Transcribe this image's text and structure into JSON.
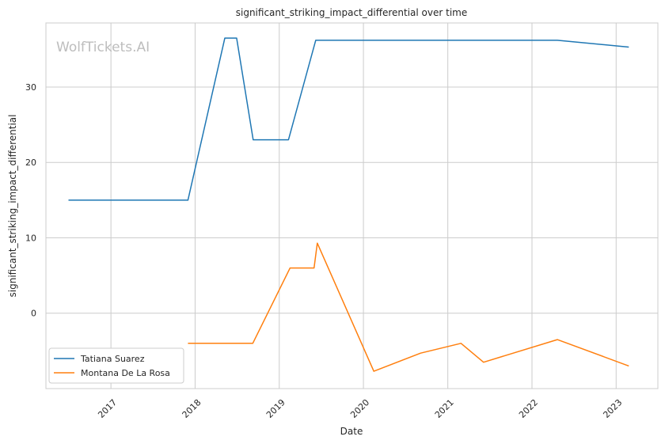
{
  "watermark": "WolfTickets.AI",
  "colors": {
    "series_1": "#1f77b4",
    "series_2": "#ff7f0e",
    "grid": "#cccccc",
    "frame": "#cccccc"
  },
  "chart_data": {
    "type": "line",
    "title": "significant_striking_impact_differential over time",
    "xlabel": "Date",
    "ylabel": "significant_striking_impact_differential",
    "x_ticks": [
      "2017",
      "2018",
      "2019",
      "2020",
      "2021",
      "2022",
      "2023"
    ],
    "y_ticks": [
      0,
      10,
      20,
      30
    ],
    "xlim": [
      "2016-03-25",
      "2023-07-01"
    ],
    "ylim": [
      -10,
      38.5
    ],
    "grid": true,
    "legend_position": "lower-left",
    "series": [
      {
        "name": "Tatiana Suarez",
        "points": [
          [
            "2016-07-01",
            15
          ],
          [
            "2017-12-01",
            15
          ],
          [
            "2018-05-10",
            36.5
          ],
          [
            "2018-06-30",
            36.5
          ],
          [
            "2018-09-10",
            23
          ],
          [
            "2019-02-10",
            23
          ],
          [
            "2019-06-08",
            36.2
          ],
          [
            "2022-04-21",
            36.2
          ],
          [
            "2023-02-25",
            35.3
          ]
        ]
      },
      {
        "name": "Montana De La Rosa",
        "points": [
          [
            "2017-12-01",
            -4
          ],
          [
            "2018-09-08",
            -4
          ],
          [
            "2019-02-17",
            6
          ],
          [
            "2019-06-01",
            6
          ],
          [
            "2019-06-15",
            9.3
          ],
          [
            "2020-02-15",
            -7.7
          ],
          [
            "2020-09-05",
            -5.3
          ],
          [
            "2021-02-27",
            -4
          ],
          [
            "2021-06-05",
            -6.5
          ],
          [
            "2022-04-21",
            -3.5
          ],
          [
            "2023-02-25",
            -7
          ]
        ]
      }
    ]
  }
}
